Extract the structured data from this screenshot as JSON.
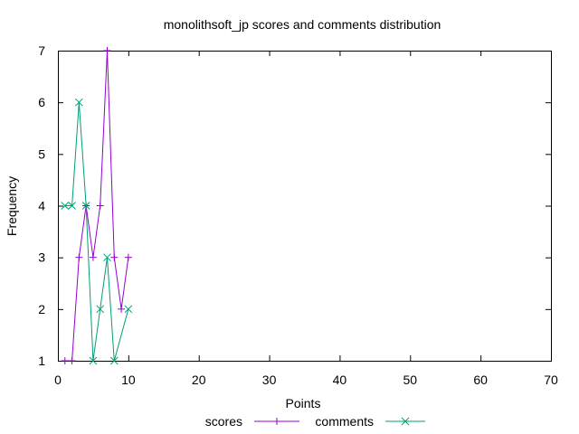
{
  "chart_data": {
    "type": "line",
    "title": "monolithsoft_jp scores and comments distribution",
    "xlabel": "Points",
    "ylabel": "Frequency",
    "xlim": [
      0,
      70
    ],
    "ylim": [
      1,
      7
    ],
    "xticks": [
      "0",
      "10",
      "20",
      "30",
      "40",
      "50",
      "60",
      "70"
    ],
    "yticks": [
      "1",
      "2",
      "3",
      "4",
      "5",
      "6",
      "7"
    ],
    "grid": false,
    "legend_position": "bottom",
    "series": [
      {
        "name": "scores",
        "color": "#9400d3",
        "marker": "plus",
        "x": [
          1,
          2,
          3,
          4,
          5,
          6,
          7,
          8,
          9,
          10
        ],
        "y": [
          1,
          1,
          3,
          4,
          3,
          4,
          7,
          3,
          2,
          3
        ]
      },
      {
        "name": "comments",
        "color": "#009e73",
        "marker": "cross",
        "x": [
          1,
          2,
          3,
          4,
          5,
          6,
          7,
          8,
          10
        ],
        "y": [
          4,
          4,
          6,
          4,
          1,
          2,
          3,
          1,
          2
        ]
      }
    ]
  }
}
